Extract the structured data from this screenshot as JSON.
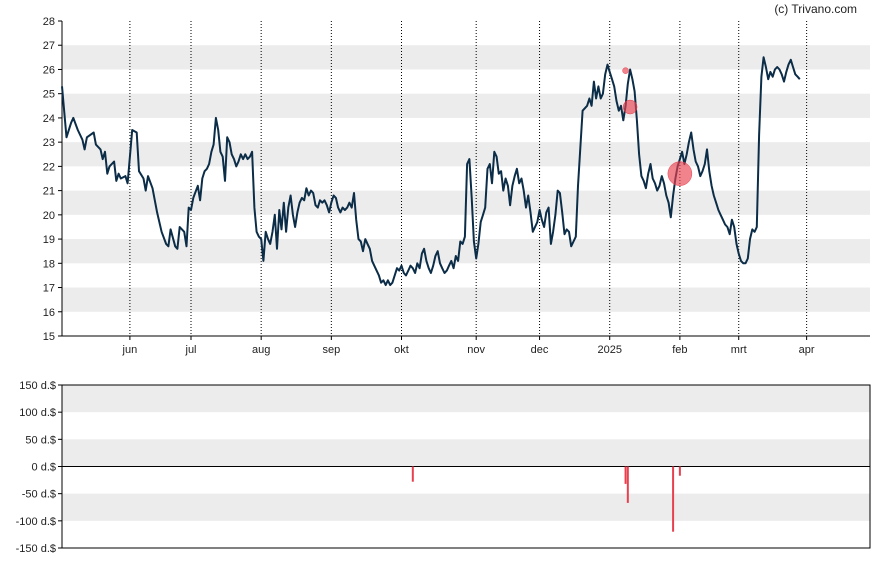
{
  "credit": "(c) Trivano.com",
  "colors": {
    "line": "#0c2d48",
    "band": "#ececec",
    "bubble": "#e8404f",
    "bar": "#e8404f",
    "axis": "#000000",
    "grid": "#000000"
  },
  "chart_data": [
    {
      "type": "line",
      "title": "",
      "xlabel": "",
      "ylabel": "",
      "ylim": [
        15,
        28
      ],
      "yticks": [
        "15",
        "16",
        "17",
        "18",
        "19",
        "20",
        "21",
        "22",
        "23",
        "24",
        "25",
        "26",
        "27",
        "28"
      ],
      "grid": "vertical dotted at month starts, alternating horizontal bands",
      "month_labels": [
        "jun",
        "jul",
        "aug",
        "sep",
        "okt",
        "nov",
        "dec",
        "2025",
        "feb",
        "mrt",
        "apr"
      ],
      "x_range_days": [
        0,
        357
      ],
      "month_days": [
        30,
        57,
        88,
        119,
        150,
        183,
        211,
        242,
        273,
        299,
        329
      ],
      "price_points": [
        [
          0,
          25.3
        ],
        [
          2,
          23.2
        ],
        [
          4,
          23.8
        ],
        [
          5,
          24.0
        ],
        [
          7,
          23.5
        ],
        [
          9,
          23.1
        ],
        [
          10,
          22.7
        ],
        [
          11,
          23.2
        ],
        [
          14,
          23.4
        ],
        [
          15,
          22.9
        ],
        [
          17,
          22.7
        ],
        [
          18,
          22.3
        ],
        [
          19,
          22.6
        ],
        [
          20,
          21.7
        ],
        [
          21,
          22.0
        ],
        [
          23,
          22.2
        ],
        [
          24,
          21.4
        ],
        [
          25,
          21.7
        ],
        [
          26,
          21.5
        ],
        [
          28,
          21.6
        ],
        [
          29,
          21.3
        ],
        [
          31,
          23.5
        ],
        [
          33,
          23.4
        ],
        [
          34,
          21.8
        ],
        [
          36,
          21.5
        ],
        [
          37,
          21.0
        ],
        [
          38,
          21.6
        ],
        [
          40,
          21.1
        ],
        [
          42,
          20.1
        ],
        [
          44,
          19.3
        ],
        [
          46,
          18.8
        ],
        [
          47,
          18.7
        ],
        [
          48,
          19.4
        ],
        [
          50,
          18.7
        ],
        [
          51,
          18.6
        ],
        [
          52,
          19.5
        ],
        [
          54,
          19.3
        ],
        [
          55,
          18.7
        ],
        [
          56,
          20.3
        ],
        [
          57,
          20.2
        ],
        [
          58,
          20.7
        ],
        [
          60,
          21.2
        ],
        [
          61,
          20.6
        ],
        [
          62,
          21.5
        ],
        [
          63,
          21.8
        ],
        [
          64,
          21.9
        ],
        [
          65,
          22.1
        ],
        [
          66,
          22.6
        ],
        [
          67,
          22.9
        ],
        [
          68,
          24.0
        ],
        [
          69,
          23.5
        ],
        [
          70,
          22.6
        ],
        [
          71,
          22.4
        ],
        [
          72,
          21.4
        ],
        [
          73,
          23.2
        ],
        [
          74,
          23.0
        ],
        [
          75,
          22.5
        ],
        [
          76,
          22.3
        ],
        [
          77,
          22.0
        ],
        [
          78,
          22.2
        ],
        [
          79,
          22.5
        ],
        [
          80,
          22.3
        ],
        [
          81,
          22.5
        ],
        [
          82,
          22.3
        ],
        [
          83,
          22.4
        ],
        [
          84,
          22.6
        ],
        [
          85,
          20.3
        ],
        [
          86,
          19.3
        ],
        [
          87,
          19.1
        ],
        [
          88,
          19.0
        ],
        [
          89,
          18.1
        ],
        [
          90,
          19.3
        ],
        [
          91,
          19.0
        ],
        [
          92,
          18.8
        ],
        [
          93,
          19.3
        ],
        [
          94,
          20.0
        ],
        [
          95,
          18.6
        ],
        [
          96,
          20.2
        ],
        [
          97,
          19.4
        ],
        [
          98,
          20.5
        ],
        [
          99,
          19.3
        ],
        [
          100,
          20.3
        ],
        [
          101,
          20.8
        ],
        [
          102,
          20.0
        ],
        [
          103,
          19.5
        ],
        [
          104,
          20.1
        ],
        [
          105,
          20.5
        ],
        [
          106,
          20.7
        ],
        [
          107,
          20.6
        ],
        [
          108,
          21.1
        ],
        [
          109,
          20.8
        ],
        [
          110,
          21.0
        ],
        [
          111,
          20.9
        ],
        [
          112,
          20.4
        ],
        [
          113,
          20.3
        ],
        [
          114,
          20.6
        ],
        [
          115,
          20.5
        ],
        [
          116,
          20.6
        ],
        [
          117,
          20.4
        ],
        [
          118,
          20.1
        ],
        [
          119,
          20.5
        ],
        [
          120,
          20.8
        ],
        [
          121,
          20.7
        ],
        [
          122,
          20.3
        ],
        [
          123,
          20.1
        ],
        [
          124,
          20.3
        ],
        [
          125,
          20.2
        ],
        [
          126,
          20.3
        ],
        [
          127,
          20.5
        ],
        [
          128,
          20.3
        ],
        [
          129,
          20.9
        ],
        [
          130,
          19.8
        ],
        [
          131,
          19.0
        ],
        [
          132,
          18.9
        ],
        [
          133,
          18.5
        ],
        [
          134,
          19.0
        ],
        [
          135,
          18.8
        ],
        [
          136,
          18.6
        ],
        [
          137,
          18.1
        ],
        [
          138,
          17.9
        ],
        [
          139,
          17.7
        ],
        [
          140,
          17.5
        ],
        [
          141,
          17.2
        ],
        [
          142,
          17.3
        ],
        [
          143,
          17.1
        ],
        [
          144,
          17.3
        ],
        [
          145,
          17.1
        ],
        [
          146,
          17.2
        ],
        [
          147,
          17.5
        ],
        [
          148,
          17.8
        ],
        [
          149,
          17.7
        ],
        [
          150,
          17.9
        ],
        [
          151,
          17.6
        ],
        [
          152,
          17.5
        ],
        [
          153,
          17.7
        ],
        [
          154,
          17.9
        ],
        [
          155,
          17.8
        ],
        [
          156,
          17.6
        ],
        [
          157,
          18.0
        ],
        [
          158,
          17.8
        ],
        [
          159,
          18.4
        ],
        [
          160,
          18.6
        ],
        [
          161,
          18.1
        ],
        [
          162,
          17.8
        ],
        [
          163,
          17.6
        ],
        [
          164,
          17.9
        ],
        [
          165,
          18.3
        ],
        [
          166,
          18.5
        ],
        [
          167,
          18.0
        ],
        [
          168,
          17.8
        ],
        [
          169,
          17.6
        ],
        [
          170,
          17.7
        ],
        [
          171,
          17.9
        ],
        [
          172,
          18.1
        ],
        [
          173,
          17.8
        ],
        [
          174,
          18.3
        ],
        [
          175,
          18.1
        ],
        [
          176,
          18.9
        ],
        [
          177,
          18.8
        ],
        [
          178,
          19.1
        ],
        [
          179,
          22.1
        ],
        [
          180,
          22.3
        ],
        [
          181,
          20.7
        ],
        [
          182,
          18.9
        ],
        [
          183,
          18.2
        ],
        [
          184,
          18.8
        ],
        [
          185,
          19.7
        ],
        [
          186,
          20.0
        ],
        [
          187,
          20.3
        ],
        [
          188,
          21.9
        ],
        [
          189,
          22.1
        ],
        [
          190,
          21.3
        ],
        [
          191,
          22.6
        ],
        [
          192,
          22.4
        ],
        [
          193,
          21.7
        ],
        [
          194,
          21.8
        ],
        [
          195,
          21.0
        ],
        [
          196,
          21.5
        ],
        [
          197,
          21.2
        ],
        [
          198,
          20.4
        ],
        [
          199,
          21.2
        ],
        [
          200,
          21.6
        ],
        [
          201,
          21.9
        ],
        [
          202,
          21.3
        ],
        [
          203,
          21.5
        ],
        [
          204,
          21.0
        ],
        [
          205,
          20.3
        ],
        [
          206,
          20.8
        ],
        [
          207,
          20.1
        ],
        [
          208,
          19.3
        ],
        [
          209,
          19.5
        ],
        [
          210,
          19.7
        ],
        [
          211,
          20.2
        ],
        [
          212,
          19.8
        ],
        [
          213,
          19.5
        ],
        [
          214,
          20.1
        ],
        [
          215,
          20.3
        ],
        [
          216,
          18.8
        ],
        [
          217,
          19.3
        ],
        [
          218,
          20.0
        ],
        [
          219,
          21.0
        ],
        [
          220,
          20.9
        ],
        [
          221,
          20.1
        ],
        [
          222,
          19.2
        ],
        [
          223,
          19.4
        ],
        [
          224,
          19.3
        ],
        [
          225,
          18.7
        ],
        [
          226,
          18.9
        ],
        [
          227,
          19.1
        ],
        [
          228,
          21.2
        ],
        [
          230,
          24.3
        ],
        [
          232,
          24.5
        ],
        [
          233,
          24.8
        ],
        [
          234,
          24.5
        ],
        [
          235,
          25.5
        ],
        [
          236,
          24.8
        ],
        [
          237,
          25.3
        ],
        [
          238,
          24.8
        ],
        [
          239,
          25.0
        ],
        [
          240,
          25.8
        ],
        [
          241,
          26.2
        ],
        [
          242,
          25.9
        ],
        [
          243,
          25.6
        ],
        [
          244,
          25.3
        ],
        [
          245,
          24.7
        ],
        [
          246,
          24.3
        ],
        [
          247,
          24.5
        ],
        [
          248,
          23.9
        ],
        [
          249,
          24.5
        ],
        [
          250,
          25.4
        ],
        [
          251,
          26.0
        ],
        [
          252,
          25.6
        ],
        [
          253,
          25.1
        ],
        [
          254,
          23.9
        ],
        [
          255,
          22.5
        ],
        [
          256,
          21.6
        ],
        [
          257,
          21.4
        ],
        [
          258,
          21.1
        ],
        [
          259,
          21.7
        ],
        [
          260,
          22.1
        ],
        [
          261,
          21.5
        ],
        [
          262,
          21.3
        ],
        [
          263,
          21.0
        ],
        [
          264,
          21.2
        ],
        [
          265,
          21.6
        ],
        [
          266,
          21.3
        ],
        [
          267,
          20.8
        ],
        [
          268,
          20.5
        ],
        [
          269,
          19.9
        ],
        [
          270,
          20.8
        ],
        [
          271,
          21.5
        ],
        [
          272,
          22.0
        ],
        [
          273,
          22.3
        ],
        [
          274,
          22.6
        ],
        [
          275,
          22.1
        ],
        [
          276,
          22.5
        ],
        [
          277,
          23.0
        ],
        [
          278,
          23.4
        ],
        [
          279,
          22.7
        ],
        [
          280,
          22.2
        ],
        [
          281,
          22.0
        ],
        [
          282,
          21.6
        ],
        [
          283,
          21.8
        ],
        [
          284,
          22.1
        ],
        [
          285,
          22.7
        ],
        [
          286,
          21.8
        ],
        [
          287,
          21.2
        ],
        [
          288,
          20.8
        ],
        [
          289,
          20.5
        ],
        [
          290,
          20.2
        ],
        [
          291,
          20.0
        ],
        [
          292,
          19.8
        ],
        [
          293,
          19.6
        ],
        [
          294,
          19.5
        ],
        [
          295,
          19.2
        ],
        [
          296,
          19.8
        ],
        [
          297,
          19.5
        ],
        [
          298,
          18.8
        ],
        [
          299,
          18.4
        ],
        [
          300,
          18.1
        ],
        [
          301,
          18.0
        ],
        [
          302,
          18.0
        ],
        [
          303,
          18.2
        ],
        [
          304,
          19.0
        ],
        [
          305,
          19.4
        ],
        [
          306,
          19.3
        ],
        [
          307,
          19.5
        ],
        [
          308,
          23.3
        ],
        [
          309,
          25.7
        ],
        [
          310,
          26.5
        ],
        [
          311,
          26.1
        ],
        [
          312,
          25.6
        ],
        [
          313,
          25.9
        ],
        [
          314,
          25.7
        ],
        [
          315,
          26.0
        ],
        [
          316,
          26.1
        ],
        [
          317,
          26.0
        ],
        [
          318,
          25.8
        ],
        [
          319,
          25.5
        ],
        [
          320,
          25.9
        ],
        [
          321,
          26.2
        ],
        [
          322,
          26.4
        ],
        [
          323,
          26.1
        ],
        [
          324,
          25.8
        ],
        [
          325,
          25.7
        ],
        [
          326,
          25.6
        ]
      ],
      "bubbles": [
        {
          "x": 249,
          "y": 25.95,
          "size": 3
        },
        {
          "x": 251,
          "y": 24.45,
          "size": 7
        },
        {
          "x": 273,
          "y": 21.7,
          "size": 12
        }
      ]
    },
    {
      "type": "bar",
      "title": "",
      "xlabel": "",
      "ylabel": "",
      "ylim": [
        -150,
        150
      ],
      "yticks": [
        "150 d.$",
        "100 d.$",
        "50 d.$",
        "0 d.$",
        "-50 d.$",
        "-100 d.$",
        "-150 d.$"
      ],
      "bars": [
        {
          "x": 155,
          "value": -28
        },
        {
          "x": 249,
          "value": -32
        },
        {
          "x": 250,
          "value": -67
        },
        {
          "x": 270,
          "value": -120
        },
        {
          "x": 273,
          "value": -17
        }
      ]
    }
  ]
}
